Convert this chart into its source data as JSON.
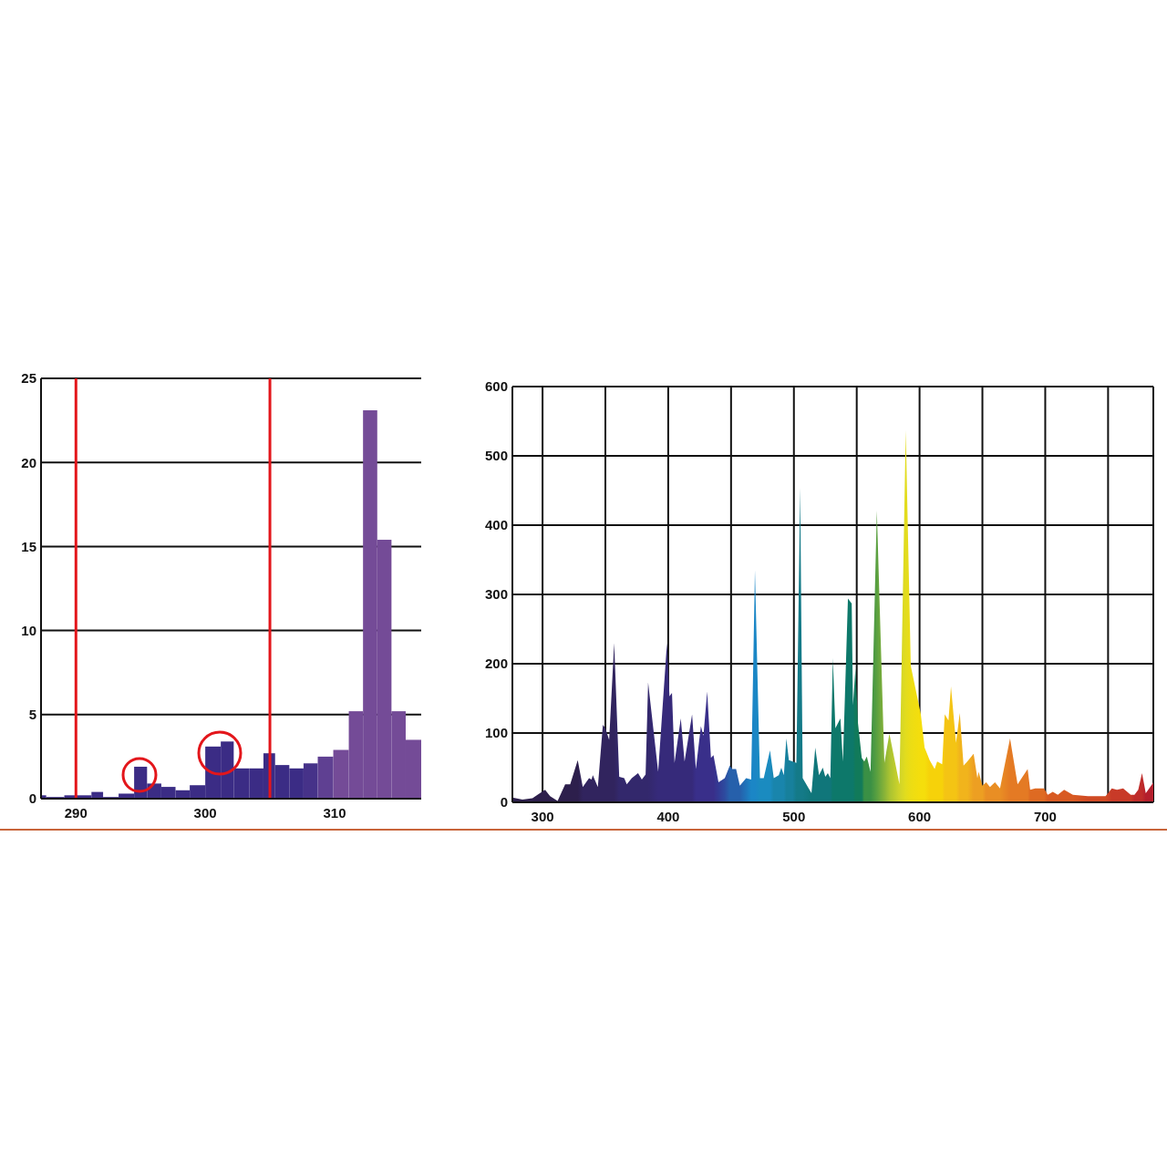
{
  "chart_data": [
    {
      "type": "histogram",
      "bins": [
        287.3,
        287.7,
        289.1,
        291.2,
        292.1,
        293.3,
        294.5,
        295.5,
        296.6,
        297.7,
        298.8,
        300.0,
        301.2,
        302.2,
        303.4,
        304.5,
        305.4,
        306.5,
        307.6,
        308.7,
        309.9,
        311.1,
        312.2,
        313.3,
        314.4,
        315.5,
        316.7
      ],
      "values": [
        0.2,
        0.1,
        0.2,
        0.4,
        0.1,
        0.3,
        1.9,
        0.9,
        0.7,
        0.5,
        0.8,
        3.1,
        3.4,
        1.8,
        1.8,
        2.7,
        2.0,
        1.8,
        2.1,
        2.5,
        2.9,
        5.2,
        23.1,
        15.4,
        5.2,
        3.5
      ],
      "colors": [
        "#3b2c85",
        "#3b2c85",
        "#3b2c85",
        "#3b2c85",
        "#3b2c85",
        "#3b2c85",
        "#3b2c85",
        "#3b2c85",
        "#3b2c85",
        "#3b2c85",
        "#3b2c85",
        "#3b2c85",
        "#3b2c85",
        "#3b2c85",
        "#3b2c85",
        "#3b2c85",
        "#3b2c85",
        "#3b2c85",
        "#463289",
        "#5f4092",
        "#744b97",
        "#744b97",
        "#744b97",
        "#744b97",
        "#744b97",
        "#744b97"
      ],
      "xlim": [
        287.3,
        316.7
      ],
      "xticks": [
        290,
        300,
        310
      ],
      "ylim": [
        0,
        25
      ],
      "yticks": [
        0,
        5,
        10,
        15,
        20,
        25
      ],
      "grid": "y",
      "ref_lines": [
        {
          "axis": "x",
          "value": 290,
          "color": "#e3161b"
        },
        {
          "axis": "x",
          "value": 305,
          "color": "#e3161b"
        }
      ]
    },
    {
      "type": "area",
      "x": [
        276,
        284,
        292,
        296,
        302,
        306,
        312,
        318,
        322,
        328,
        332,
        337,
        339,
        340,
        344,
        348,
        350,
        353,
        357,
        361,
        365,
        367,
        371,
        376,
        379,
        382,
        384,
        392,
        399,
        401,
        403,
        405,
        410,
        413,
        419,
        422,
        426,
        428,
        431,
        434,
        436,
        440,
        445,
        449,
        451,
        454,
        457,
        462,
        466,
        469,
        473,
        476,
        481,
        484,
        488,
        490,
        492,
        494,
        496,
        499,
        502,
        505,
        507,
        514,
        517,
        520,
        523,
        525,
        527,
        529,
        531,
        533,
        537,
        539,
        543,
        546,
        547,
        549,
        551,
        554,
        556,
        558,
        561,
        566,
        572,
        576,
        584,
        589,
        593,
        601,
        604,
        608,
        612,
        614,
        618,
        620,
        623,
        625,
        629,
        632,
        635,
        638,
        643,
        646,
        647,
        650,
        653,
        656,
        660,
        664,
        672,
        678,
        686,
        688,
        692,
        699,
        702,
        706,
        710,
        715,
        722,
        734,
        748,
        753,
        757,
        762,
        768,
        771,
        774,
        777,
        780,
        785,
        786
      ],
      "values": [
        7,
        4,
        6,
        11,
        18,
        9,
        2,
        26,
        26,
        61,
        22,
        35,
        33,
        39,
        22,
        112,
        107,
        90,
        230,
        37,
        35,
        26,
        35,
        42,
        33,
        40,
        173,
        44,
        230,
        153,
        158,
        57,
        121,
        59,
        127,
        48,
        110,
        96,
        160,
        64,
        68,
        29,
        35,
        53,
        48,
        48,
        24,
        35,
        33,
        335,
        35,
        35,
        75,
        35,
        39,
        50,
        39,
        92,
        61,
        59,
        57,
        454,
        35,
        13,
        79,
        39,
        50,
        37,
        42,
        35,
        208,
        107,
        121,
        59,
        294,
        287,
        140,
        193,
        114,
        64,
        59,
        66,
        44,
        421,
        57,
        99,
        26,
        537,
        197,
        127,
        79,
        61,
        48,
        59,
        55,
        127,
        118,
        167,
        86,
        129,
        53,
        59,
        70,
        35,
        44,
        24,
        29,
        22,
        29,
        20,
        92,
        26,
        48,
        18,
        20,
        20,
        11,
        15,
        11,
        18,
        11,
        9,
        9,
        20,
        18,
        20,
        11,
        11,
        18,
        42,
        13,
        26,
        29
      ],
      "colors": [
        "#2d1f4c",
        "#2d1f4c",
        "#2d1f4c",
        "#2d1f4c",
        "#2d1f4c",
        "#2d1f4c",
        "#2d1f4c",
        "#2d1f4c",
        "#2d1f4c",
        "#2d1f4c",
        "#31245e",
        "#31245e",
        "#31245e",
        "#31245e",
        "#31245e",
        "#31245e",
        "#31245e",
        "#31245e",
        "#31245e",
        "#33286c",
        "#33286c",
        "#33286c",
        "#33286c",
        "#33286c",
        "#33286c",
        "#33286c",
        "#33286c",
        "#362a7a",
        "#362a7a",
        "#362a7a",
        "#362a7a",
        "#362a7a",
        "#362a7a",
        "#362a7a",
        "#362a7a",
        "#392f8a",
        "#392f8a",
        "#392f8a",
        "#392f8a",
        "#392f8a",
        "#392f8a",
        "#333a94",
        "#2d4b9f",
        "#2660ab",
        "#2660ab",
        "#2660ab",
        "#2660ab",
        "#1f74ba",
        "#1b86c6",
        "#1b86c6",
        "#1a8bc0",
        "#1a8bc0",
        "#1a8bc0",
        "#1985ac",
        "#1985ac",
        "#1985ac",
        "#1985ac",
        "#17809c",
        "#17809c",
        "#17809c",
        "#147a88",
        "#147a88",
        "#147a88",
        "#10767a",
        "#10767a",
        "#10767a",
        "#10767a",
        "#10767a",
        "#10767a",
        "#10767a",
        "#0d786a",
        "#0d786a",
        "#0d786a",
        "#0d786a",
        "#0d786a",
        "#0d786a",
        "#0d786a",
        "#117a5a",
        "#117a5a",
        "#117a5a",
        "#3a9045",
        "#3a9045",
        "#3a9045",
        "#5aa040",
        "#88b338",
        "#a8c232",
        "#d0d42a",
        "#e2dc1e",
        "#ecdd14",
        "#f5de0c",
        "#f5de0c",
        "#f6d20a",
        "#f6d20a",
        "#f6d20a",
        "#f6d20a",
        "#f4c414",
        "#f4c414",
        "#f4c414",
        "#f4c414",
        "#f1b41c",
        "#f1b41c",
        "#f1b41c",
        "#ed9f22",
        "#ed9f22",
        "#ed9f22",
        "#ed9f22",
        "#e98e24",
        "#e98e24",
        "#e98e24",
        "#e98e24",
        "#e47a24",
        "#e47a24",
        "#e47a24",
        "#de6a22",
        "#de6a22",
        "#de6a22",
        "#d85a22",
        "#d85a22",
        "#d85a22",
        "#d85a22",
        "#d85a22",
        "#d04a24",
        "#d04a24",
        "#c83a28",
        "#c83a28",
        "#c83a28",
        "#c83a28",
        "#bf2c2a",
        "#bf2c2a",
        "#bf2c2a",
        "#b41e2c",
        "#b41e2c",
        "#b41e2c"
      ],
      "xlim": [
        276,
        786
      ],
      "xticks": [
        300,
        {
          "value": 350,
          "label": null
        },
        400,
        {
          "value": 450,
          "label": null
        },
        500,
        {
          "value": 550,
          "label": null
        },
        600,
        {
          "value": 650,
          "label": null
        },
        700,
        {
          "value": 750,
          "label": null
        }
      ],
      "ylim": [
        0,
        600
      ],
      "yticks": [
        0,
        100,
        200,
        300,
        400,
        500,
        600
      ],
      "grid": true
    }
  ]
}
